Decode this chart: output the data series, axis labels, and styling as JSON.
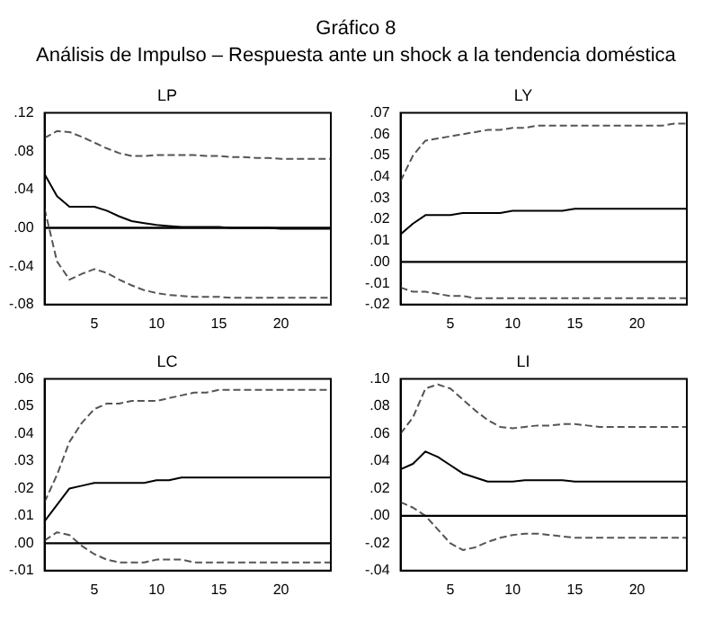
{
  "chart_data": [
    {
      "type": "line",
      "title": "LP",
      "annotations": [
        "Gráfico 8",
        "Análisis de Impulso – Respuesta  ante un shock a  la tendencia doméstica"
      ],
      "x": [
        1,
        2,
        3,
        4,
        5,
        6,
        7,
        8,
        9,
        10,
        11,
        12,
        13,
        14,
        15,
        16,
        17,
        18,
        19,
        20,
        21,
        22,
        23,
        24
      ],
      "xlim": [
        1,
        24
      ],
      "xticks": [
        5,
        10,
        15,
        20
      ],
      "ylim": [
        -0.08,
        0.12
      ],
      "yticks": [
        {
          "value": -0.08,
          "label": "-.08"
        },
        {
          "value": -0.04,
          "label": "-.04"
        },
        {
          "value": 0,
          "label": ".00"
        },
        {
          "value": 0.04,
          "label": ".04"
        },
        {
          "value": 0.08,
          "label": ".08"
        },
        {
          "value": 0.12,
          "label": ".12"
        }
      ],
      "ref_lines": [
        {
          "axis": "y",
          "value": 0,
          "color": "#000000"
        }
      ],
      "grid": false,
      "legend": false,
      "marker": "none",
      "series": [
        {
          "color": "#555555",
          "line_style": "dashed",
          "values": [
            0.094,
            0.101,
            0.1,
            0.095,
            0.089,
            0.083,
            0.078,
            0.075,
            0.075,
            0.076,
            0.076,
            0.076,
            0.076,
            0.075,
            0.075,
            0.074,
            0.074,
            0.073,
            0.073,
            0.072,
            0.072,
            0.072,
            0.072,
            0.072
          ]
        },
        {
          "color": "#000000",
          "line_style": "solid",
          "values": [
            0.056,
            0.033,
            0.022,
            0.022,
            0.022,
            0.018,
            0.012,
            0.007,
            0.005,
            0.003,
            0.002,
            0.001,
            0.001,
            0.001,
            0.001,
            0,
            0,
            0,
            0,
            -0.001,
            -0.001,
            -0.001,
            -0.001,
            -0.001
          ]
        },
        {
          "color": "#555555",
          "line_style": "dashed",
          "values": [
            0.02,
            -0.035,
            -0.054,
            -0.048,
            -0.043,
            -0.047,
            -0.054,
            -0.06,
            -0.065,
            -0.068,
            -0.07,
            -0.071,
            -0.072,
            -0.072,
            -0.072,
            -0.073,
            -0.073,
            -0.073,
            -0.073,
            -0.073,
            -0.073,
            -0.073,
            -0.073,
            -0.073
          ]
        }
      ]
    },
    {
      "type": "line",
      "title": "LY",
      "x": [
        1,
        2,
        3,
        4,
        5,
        6,
        7,
        8,
        9,
        10,
        11,
        12,
        13,
        14,
        15,
        16,
        17,
        18,
        19,
        20,
        21,
        22,
        23,
        24
      ],
      "xlim": [
        1,
        24
      ],
      "xticks": [
        5,
        10,
        15,
        20
      ],
      "ylim": [
        -0.02,
        0.07
      ],
      "yticks": [
        {
          "value": -0.02,
          "label": "-.02"
        },
        {
          "value": -0.01,
          "label": "-.01"
        },
        {
          "value": 0,
          "label": ".00"
        },
        {
          "value": 0.01,
          "label": ".01"
        },
        {
          "value": 0.02,
          "label": ".02"
        },
        {
          "value": 0.03,
          "label": ".03"
        },
        {
          "value": 0.04,
          "label": ".04"
        },
        {
          "value": 0.05,
          "label": ".05"
        },
        {
          "value": 0.06,
          "label": ".06"
        },
        {
          "value": 0.07,
          "label": ".07"
        }
      ],
      "ref_lines": [
        {
          "axis": "y",
          "value": 0,
          "color": "#000000"
        }
      ],
      "grid": false,
      "legend": false,
      "marker": "none",
      "series": [
        {
          "color": "#555555",
          "line_style": "dashed",
          "values": [
            0.038,
            0.05,
            0.057,
            0.058,
            0.059,
            0.06,
            0.061,
            0.062,
            0.062,
            0.063,
            0.063,
            0.064,
            0.064,
            0.064,
            0.064,
            0.064,
            0.064,
            0.064,
            0.064,
            0.064,
            0.064,
            0.064,
            0.065,
            0.065
          ]
        },
        {
          "color": "#000000",
          "line_style": "solid",
          "values": [
            0.013,
            0.018,
            0.022,
            0.022,
            0.022,
            0.023,
            0.023,
            0.023,
            0.023,
            0.024,
            0.024,
            0.024,
            0.024,
            0.024,
            0.025,
            0.025,
            0.025,
            0.025,
            0.025,
            0.025,
            0.025,
            0.025,
            0.025,
            0.025
          ]
        },
        {
          "color": "#555555",
          "line_style": "dashed",
          "values": [
            -0.012,
            -0.014,
            -0.014,
            -0.015,
            -0.016,
            -0.016,
            -0.017,
            -0.017,
            -0.017,
            -0.017,
            -0.017,
            -0.017,
            -0.017,
            -0.017,
            -0.017,
            -0.017,
            -0.017,
            -0.017,
            -0.017,
            -0.017,
            -0.017,
            -0.017,
            -0.017,
            -0.017
          ]
        }
      ]
    },
    {
      "type": "line",
      "title": "LC",
      "x": [
        1,
        2,
        3,
        4,
        5,
        6,
        7,
        8,
        9,
        10,
        11,
        12,
        13,
        14,
        15,
        16,
        17,
        18,
        19,
        20,
        21,
        22,
        23,
        24
      ],
      "xlim": [
        1,
        24
      ],
      "xticks": [
        5,
        10,
        15,
        20
      ],
      "ylim": [
        -0.01,
        0.06
      ],
      "yticks": [
        {
          "value": -0.01,
          "label": "-.01"
        },
        {
          "value": 0,
          "label": ".00"
        },
        {
          "value": 0.01,
          "label": ".01"
        },
        {
          "value": 0.02,
          "label": ".02"
        },
        {
          "value": 0.03,
          "label": ".03"
        },
        {
          "value": 0.04,
          "label": ".04"
        },
        {
          "value": 0.05,
          "label": ".05"
        },
        {
          "value": 0.06,
          "label": ".06"
        }
      ],
      "ref_lines": [
        {
          "axis": "y",
          "value": 0,
          "color": "#000000"
        }
      ],
      "grid": false,
      "legend": false,
      "marker": "none",
      "series": [
        {
          "color": "#555555",
          "line_style": "dashed",
          "values": [
            0.015,
            0.025,
            0.037,
            0.044,
            0.049,
            0.051,
            0.051,
            0.052,
            0.052,
            0.052,
            0.053,
            0.054,
            0.055,
            0.055,
            0.056,
            0.056,
            0.056,
            0.056,
            0.056,
            0.056,
            0.056,
            0.056,
            0.056,
            0.056
          ]
        },
        {
          "color": "#000000",
          "line_style": "solid",
          "values": [
            0.008,
            0.014,
            0.02,
            0.021,
            0.022,
            0.022,
            0.022,
            0.022,
            0.022,
            0.023,
            0.023,
            0.024,
            0.024,
            0.024,
            0.024,
            0.024,
            0.024,
            0.024,
            0.024,
            0.024,
            0.024,
            0.024,
            0.024,
            0.024
          ]
        },
        {
          "color": "#555555",
          "line_style": "dashed",
          "values": [
            0.001,
            0.004,
            0.003,
            -0.001,
            -0.004,
            -0.006,
            -0.007,
            -0.007,
            -0.007,
            -0.006,
            -0.006,
            -0.006,
            -0.007,
            -0.007,
            -0.007,
            -0.007,
            -0.007,
            -0.007,
            -0.007,
            -0.007,
            -0.007,
            -0.007,
            -0.007,
            -0.007
          ]
        }
      ]
    },
    {
      "type": "line",
      "title": "LI",
      "x": [
        1,
        2,
        3,
        4,
        5,
        6,
        7,
        8,
        9,
        10,
        11,
        12,
        13,
        14,
        15,
        16,
        17,
        18,
        19,
        20,
        21,
        22,
        23,
        24
      ],
      "xlim": [
        1,
        24
      ],
      "xticks": [
        5,
        10,
        15,
        20
      ],
      "ylim": [
        -0.04,
        0.1
      ],
      "yticks": [
        {
          "value": -0.04,
          "label": "-.04"
        },
        {
          "value": -0.02,
          "label": "-.02"
        },
        {
          "value": 0,
          "label": ".00"
        },
        {
          "value": 0.02,
          "label": ".02"
        },
        {
          "value": 0.04,
          "label": ".04"
        },
        {
          "value": 0.06,
          "label": ".06"
        },
        {
          "value": 0.08,
          "label": ".08"
        },
        {
          "value": 0.1,
          "label": ".10"
        }
      ],
      "ref_lines": [
        {
          "axis": "y",
          "value": 0,
          "color": "#000000"
        }
      ],
      "grid": false,
      "legend": false,
      "marker": "none",
      "series": [
        {
          "color": "#555555",
          "line_style": "dashed",
          "values": [
            0.06,
            0.072,
            0.093,
            0.096,
            0.093,
            0.085,
            0.077,
            0.07,
            0.065,
            0.064,
            0.065,
            0.066,
            0.066,
            0.067,
            0.067,
            0.066,
            0.065,
            0.065,
            0.065,
            0.065,
            0.065,
            0.065,
            0.065,
            0.065
          ]
        },
        {
          "color": "#000000",
          "line_style": "solid",
          "values": [
            0.034,
            0.038,
            0.047,
            0.043,
            0.037,
            0.031,
            0.028,
            0.025,
            0.025,
            0.025,
            0.026,
            0.026,
            0.026,
            0.026,
            0.025,
            0.025,
            0.025,
            0.025,
            0.025,
            0.025,
            0.025,
            0.025,
            0.025,
            0.025
          ]
        },
        {
          "color": "#555555",
          "line_style": "dashed",
          "values": [
            0.01,
            0.006,
            0,
            -0.01,
            -0.02,
            -0.025,
            -0.023,
            -0.019,
            -0.016,
            -0.014,
            -0.013,
            -0.013,
            -0.014,
            -0.015,
            -0.016,
            -0.016,
            -0.016,
            -0.016,
            -0.016,
            -0.016,
            -0.016,
            -0.016,
            -0.016,
            -0.016
          ]
        }
      ]
    }
  ]
}
